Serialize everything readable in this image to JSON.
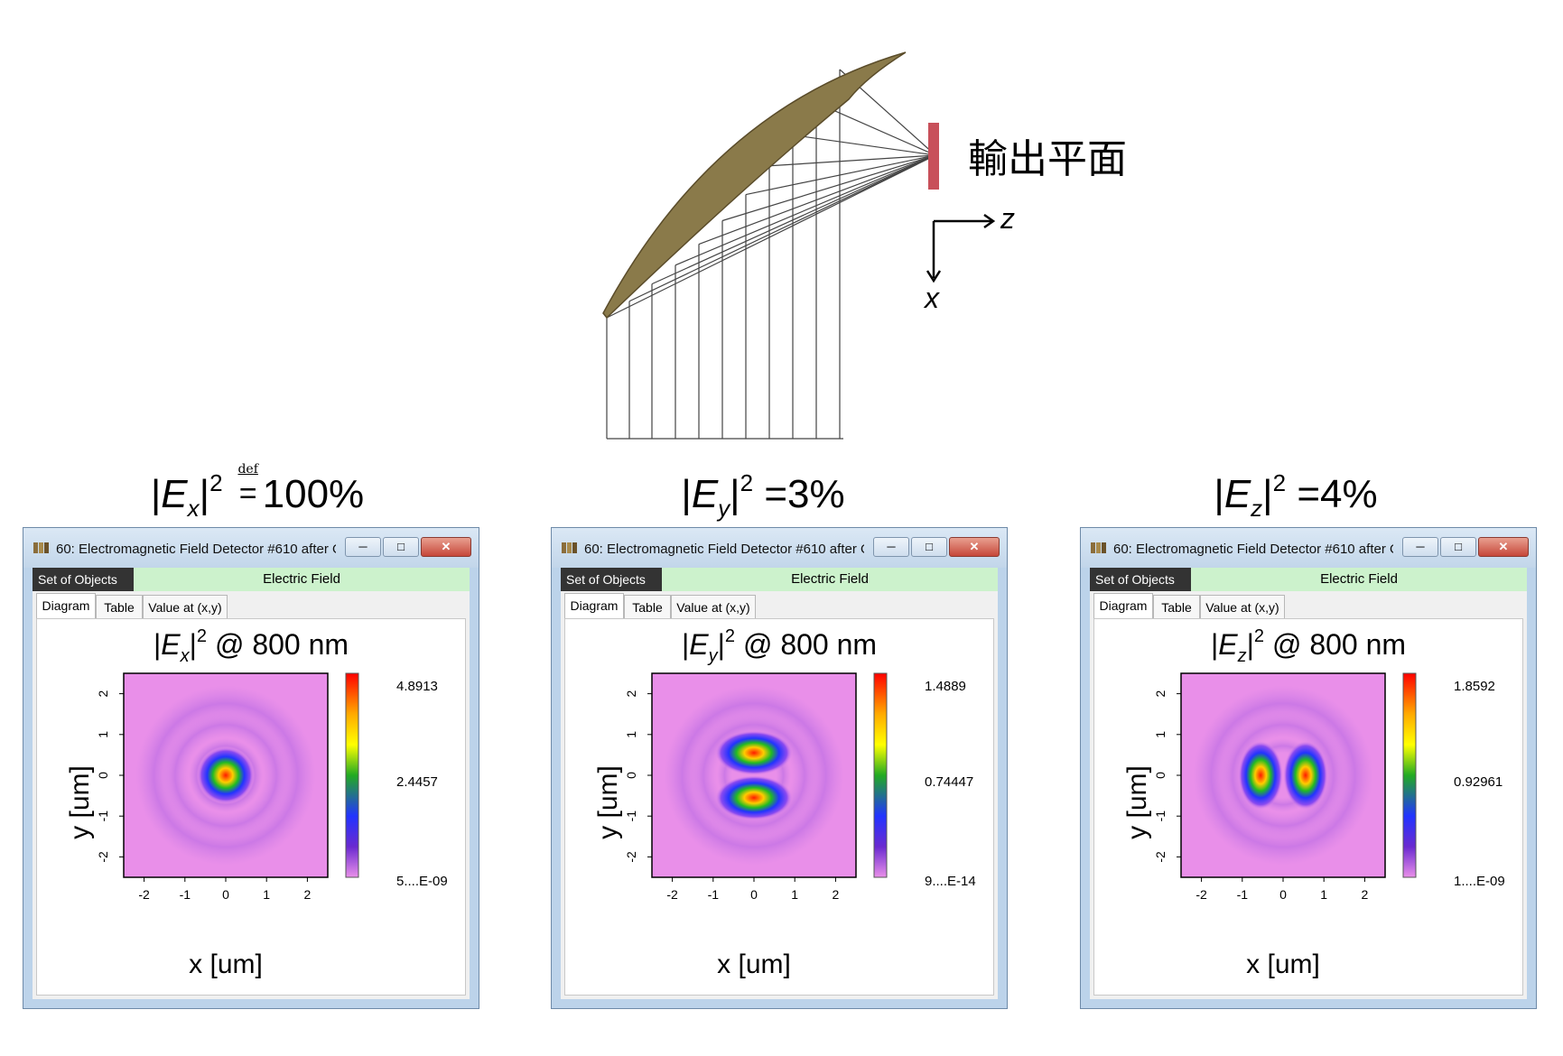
{
  "diagram": {
    "output_plane_label": "輸出平面",
    "axis_z": "z",
    "axis_x": "x"
  },
  "headlines": [
    {
      "field": "E",
      "comp": "x",
      "relation": "def",
      "value": "100%"
    },
    {
      "field": "E",
      "comp": "y",
      "relation": "=",
      "value": "3%"
    },
    {
      "field": "E",
      "comp": "z",
      "relation": "=",
      "value": "4%"
    }
  ],
  "windows": [
    {
      "title": "60: Electromagnetic Field Detector #610 after O...",
      "set_of_objects": "Set of Objects",
      "object_label": "Electric Field",
      "tabs": [
        "Diagram",
        "Table",
        "Value at (x,y)"
      ],
      "plot_title": {
        "field": "E",
        "comp": "x",
        "suffix": "@ 800 nm"
      },
      "xlabel": "x [um]",
      "ylabel": "y [um]",
      "x_ticks": [
        "-2",
        "-1",
        "0",
        "1",
        "2"
      ],
      "y_ticks": [
        "2",
        "1",
        "0",
        "-1",
        "-2"
      ],
      "colorbar": [
        "4.8913",
        "2.4457",
        "5....E-09"
      ],
      "pattern": "center"
    },
    {
      "title": "60: Electromagnetic Field Detector #610 after O...",
      "set_of_objects": "Set of Objects",
      "object_label": "Electric Field",
      "tabs": [
        "Diagram",
        "Table",
        "Value at (x,y)"
      ],
      "plot_title": {
        "field": "E",
        "comp": "y",
        "suffix": "@ 800 nm"
      },
      "xlabel": "x [um]",
      "ylabel": "y [um]",
      "x_ticks": [
        "-2",
        "-1",
        "0",
        "1",
        "2"
      ],
      "y_ticks": [
        "2",
        "1",
        "0",
        "-1",
        "-2"
      ],
      "colorbar": [
        "1.4889",
        "0.74447",
        "9....E-14"
      ],
      "pattern": "vertical-pair"
    },
    {
      "title": "60: Electromagnetic Field Detector #610 after O...",
      "set_of_objects": "Set of Objects",
      "object_label": "Electric Field",
      "tabs": [
        "Diagram",
        "Table",
        "Value at (x,y)"
      ],
      "plot_title": {
        "field": "E",
        "comp": "z",
        "suffix": "@ 800 nm"
      },
      "xlabel": "x [um]",
      "ylabel": "y [um]",
      "x_ticks": [
        "-2",
        "-1",
        "0",
        "1",
        "2"
      ],
      "y_ticks": [
        "2",
        "1",
        "0",
        "-1",
        "-2"
      ],
      "colorbar": [
        "1.8592",
        "0.92961",
        "1....E-09"
      ],
      "pattern": "horizontal-pair"
    }
  ],
  "colors": {
    "mirror": "#8a7a4a",
    "output_plane": "#c8505a",
    "plot_background": "#e98fe9",
    "title_bar": "#c9dcee",
    "object_bar": "#ccf2cc"
  }
}
